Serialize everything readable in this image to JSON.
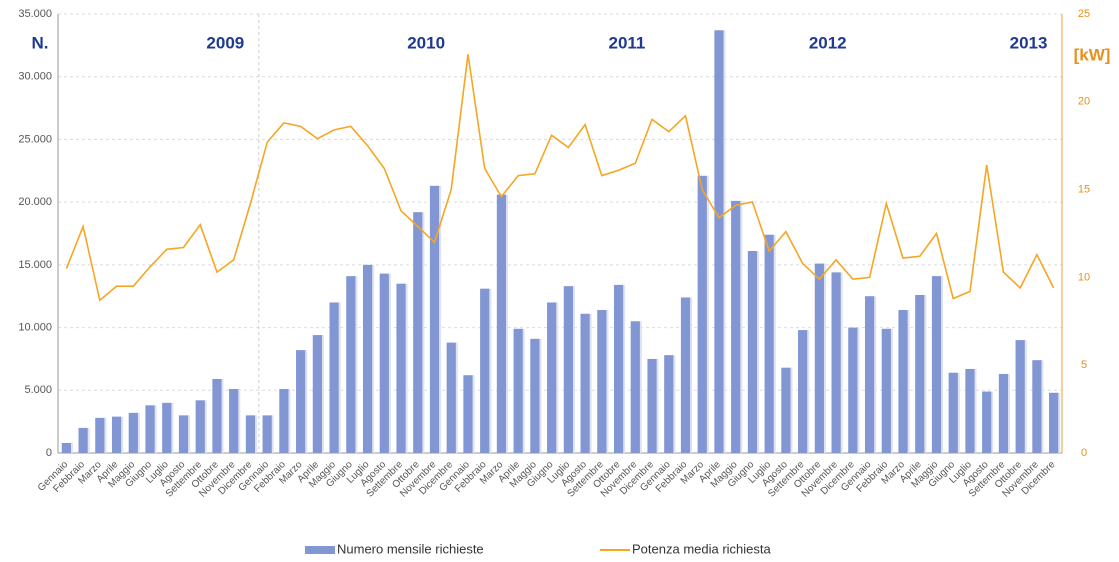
{
  "chart_data": {
    "type": "bar-line",
    "y_label": "N.",
    "y2_label": "[kW]",
    "annotations": [
      "2009",
      "2010",
      "2011",
      "2012",
      "2013"
    ],
    "categories": [
      "Gennaio",
      "Febbraio",
      "Marzo",
      "Aprile",
      "Maggio",
      "Giugno",
      "Luglio",
      "Agosto",
      "Settembre",
      "Ottobre",
      "Novembre",
      "Dicembre",
      "Gennaio",
      "Febbraio",
      "Marzo",
      "Aprile",
      "Maggio",
      "Giugno",
      "Luglio",
      "Agosto",
      "Settembre",
      "Ottobre",
      "Novembre",
      "Dicembre",
      "Gennaio",
      "Febbraio",
      "Marzo",
      "Aprile",
      "Maggio",
      "Giugno",
      "Luglio",
      "Agosto",
      "Settembre",
      "Ottobre",
      "Novembre",
      "Dicembre",
      "Gennaio",
      "Febbraio",
      "Marzo",
      "Aprile",
      "Maggio",
      "Giugno",
      "Luglio",
      "Agosto",
      "Settembre",
      "Ottobre",
      "Novembre",
      "Dicembre",
      "Gennaio",
      "Febbraio",
      "Marzo",
      "Aprile",
      "Maggio",
      "Giugno",
      "Luglio",
      "Agosto",
      "Settembre",
      "Ottobre",
      "Novembre",
      "Dicembre"
    ],
    "series": [
      {
        "name": "Numero mensile richieste",
        "color": "#8296d4",
        "type": "bar",
        "values": [
          800,
          2000,
          2800,
          2900,
          3200,
          3800,
          4000,
          3000,
          4200,
          5900,
          5100,
          3000,
          3000,
          5100,
          8200,
          9400,
          12000,
          14100,
          15000,
          14300,
          13500,
          19200,
          21300,
          8800,
          6200,
          13100,
          20600,
          9900,
          9100,
          12000,
          13300,
          11100,
          11400,
          13400,
          10500,
          7500,
          7800,
          12400,
          22100,
          33700,
          20100,
          16100,
          17400,
          6800,
          9800,
          15100,
          14400,
          10000,
          12500,
          9900,
          11400,
          12600,
          14100,
          6400,
          6700,
          4900,
          6300,
          9000,
          7400,
          4800
        ]
      },
      {
        "name": "Potenza media richiesta",
        "color": "#f5a623",
        "type": "line",
        "axis": "y2",
        "values": [
          10.5,
          12.9,
          8.7,
          9.5,
          9.5,
          10.6,
          11.6,
          11.7,
          13.0,
          10.3,
          11.0,
          14.2,
          17.7,
          18.8,
          18.6,
          17.9,
          18.4,
          18.6,
          17.5,
          16.2,
          13.8,
          12.9,
          12.0,
          15.0,
          22.7,
          16.2,
          14.6,
          15.8,
          15.9,
          18.1,
          17.4,
          18.7,
          15.8,
          16.1,
          16.5,
          19.0,
          18.3,
          19.2,
          15.0,
          13.4,
          14.1,
          14.3,
          11.5,
          12.6,
          10.8,
          9.9,
          11.0,
          9.9,
          10.0,
          14.2,
          11.1,
          11.2,
          12.5,
          8.8,
          9.2,
          16.4,
          10.3,
          9.4,
          11.3,
          9.4
        ]
      }
    ],
    "ylim": [
      0,
      35000
    ],
    "yticks": [
      0,
      {
        "value": 5000,
        "label": "5.000"
      },
      {
        "value": 10000,
        "label": "10.000"
      },
      {
        "value": 15000,
        "label": "15.000"
      },
      {
        "value": 20000,
        "label": "20.000"
      },
      {
        "value": 25000,
        "label": "25.000"
      },
      {
        "value": 30000,
        "label": "30.000"
      },
      {
        "value": 35000,
        "label": "35.000"
      }
    ],
    "y2lim": [
      0,
      25
    ],
    "y2ticks": [
      0,
      5,
      10,
      15,
      20,
      25
    ],
    "grid": true
  }
}
